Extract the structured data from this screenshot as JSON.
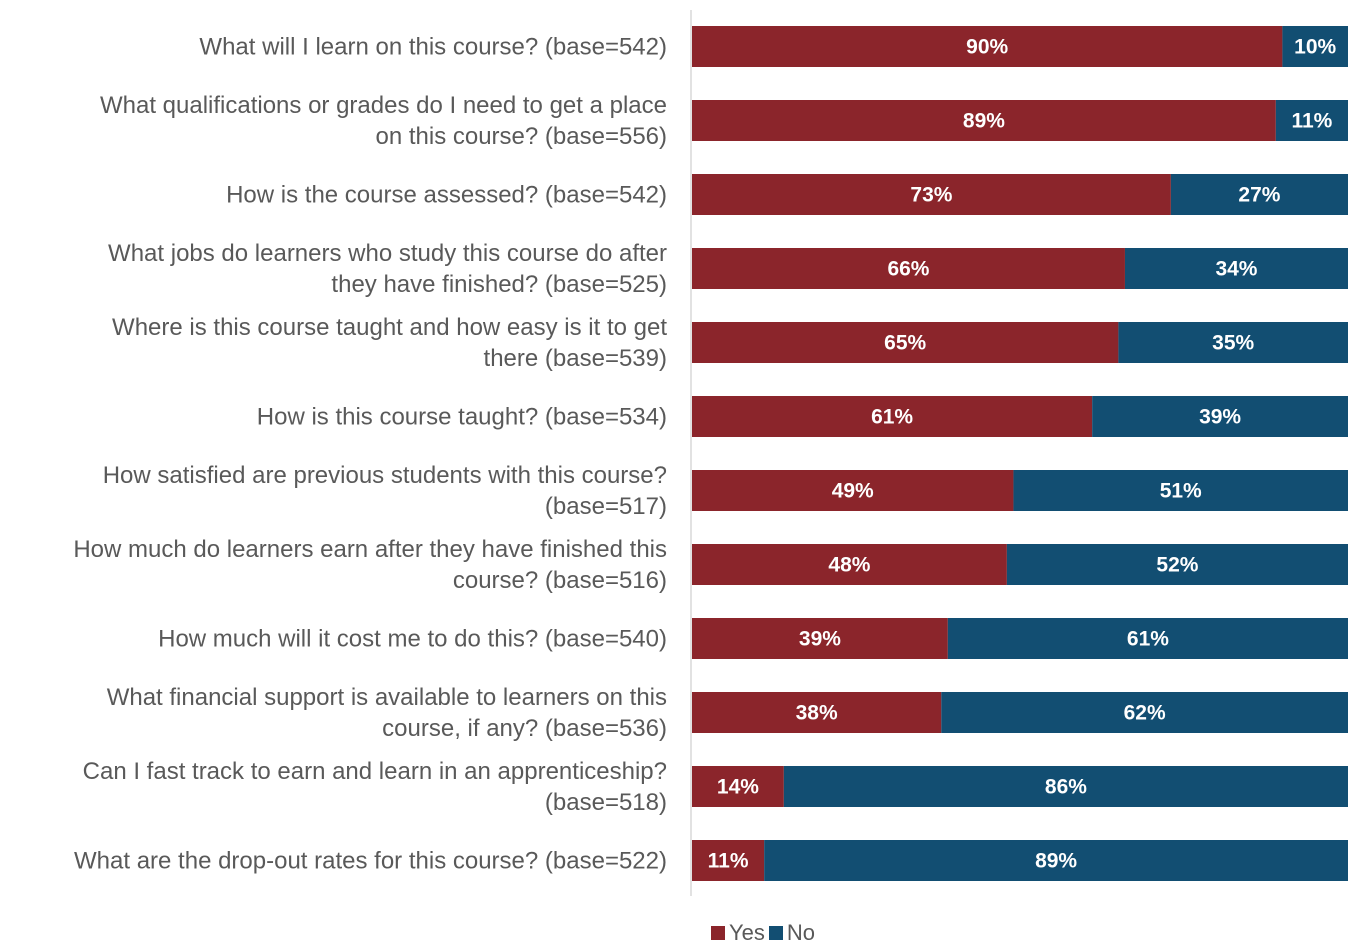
{
  "chart_data": {
    "type": "bar",
    "orientation": "horizontal",
    "stacked": true,
    "xlim": [
      0,
      100
    ],
    "grid": false,
    "legend_position": "bottom",
    "categories": [
      [
        "What will I learn on this course? (base=542)"
      ],
      [
        "What qualifications or grades do I need to get a place",
        "on this course? (base=556)"
      ],
      [
        "How is the course assessed? (base=542)"
      ],
      [
        "What jobs do learners who study this course do after",
        "they have finished? (base=525)"
      ],
      [
        "Where is this course taught and how easy is it to get",
        "there (base=539)"
      ],
      [
        "How is this course taught? (base=534)"
      ],
      [
        "How satisfied are previous students with this course?",
        "(base=517)"
      ],
      [
        "How much do learners earn after they have finished this",
        "course? (base=516)"
      ],
      [
        "How much will it cost me to do this? (base=540)"
      ],
      [
        "What financial support is available to learners on this",
        "course, if any? (base=536)"
      ],
      [
        "Can I fast track to earn and learn in an apprenticeship?",
        "(base=518)"
      ],
      [
        "What are the drop-out rates for this course? (base=522)"
      ]
    ],
    "series": [
      {
        "name": "Yes",
        "color": "#8B252B",
        "values": [
          90,
          89,
          73,
          66,
          65,
          61,
          49,
          48,
          39,
          38,
          14,
          11
        ],
        "labels": [
          "90%",
          "89%",
          "73%",
          "66%",
          "65%",
          "61%",
          "49%",
          "48%",
          "39%",
          "38%",
          "14%",
          "11%"
        ]
      },
      {
        "name": "No",
        "color": "#124E72",
        "values": [
          10,
          11,
          27,
          34,
          35,
          39,
          51,
          52,
          61,
          62,
          86,
          89
        ],
        "labels": [
          "10%",
          "11%",
          "27%",
          "34%",
          "35%",
          "39%",
          "51%",
          "52%",
          "61%",
          "62%",
          "86%",
          "89%"
        ]
      }
    ],
    "axis_color": "#D9D9D9",
    "text_color": "#595959"
  }
}
